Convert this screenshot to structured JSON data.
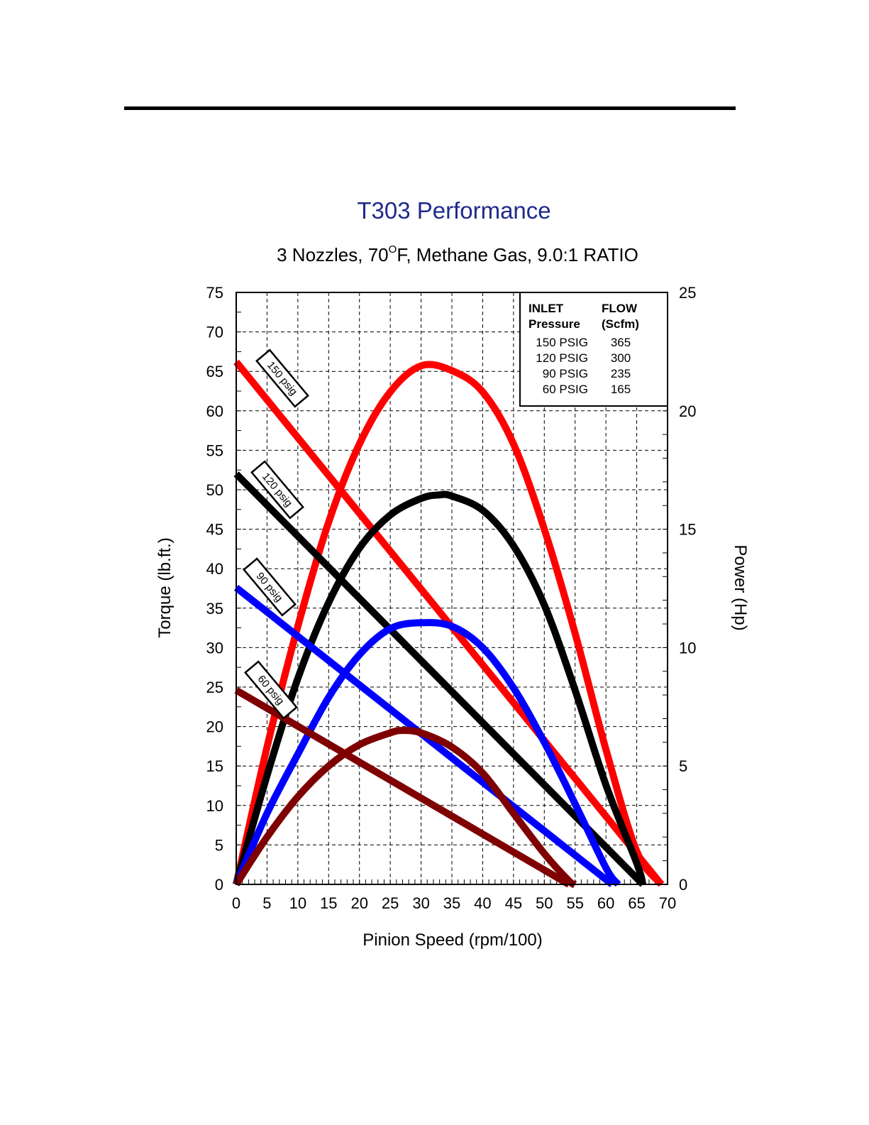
{
  "chart_data": {
    "type": "line",
    "title": "T303 Performance",
    "subtitle": {
      "prefix": "3 Nozzles,  70",
      "degree": "O",
      "suffix": "F, Methane Gas, 9.0:1 RATIO"
    },
    "xlabel": "Pinion Speed (rpm/100)",
    "ylabel": "Torque (lb.ft.)",
    "y2label": "Power (Hp)",
    "xlim": [
      0,
      70
    ],
    "ylim": [
      0,
      75
    ],
    "y2lim": [
      0,
      25
    ],
    "xticks": [
      "0",
      "5",
      "10",
      "15",
      "20",
      "25",
      "30",
      "35",
      "40",
      "45",
      "50",
      "55",
      "60",
      "65",
      "70"
    ],
    "yticks": [
      "0",
      "5",
      "10",
      "15",
      "20",
      "25",
      "30",
      "35",
      "40",
      "45",
      "50",
      "55",
      "60",
      "65",
      "70",
      "75"
    ],
    "y2ticks": [
      "0",
      "5",
      "10",
      "15",
      "20",
      "25"
    ],
    "grid": true,
    "legend": {
      "position": "top-right",
      "col1_header": [
        "INLET",
        "Pressure"
      ],
      "col2_header": [
        "FLOW",
        "(Scfm)"
      ],
      "rows": [
        {
          "pressure": "150 PSIG",
          "flow": "365"
        },
        {
          "pressure": "120 PSIG",
          "flow": "300"
        },
        {
          "pressure": "90 PSIG",
          "flow": "235"
        },
        {
          "pressure": "60 PSIG",
          "flow": "165"
        }
      ]
    },
    "series": [
      {
        "name": "150 psig",
        "color": "#ff0000",
        "torque": {
          "x": [
            0,
            69
          ],
          "y": [
            66.2,
            0
          ]
        },
        "power": {
          "x": [
            0,
            5,
            10,
            15,
            20,
            25,
            30,
            35,
            40,
            45,
            50,
            55,
            60,
            65,
            69
          ],
          "y": [
            0,
            5.8,
            10.9,
            15.3,
            18.6,
            20.8,
            21.9,
            21.7,
            20.8,
            18.6,
            15.0,
            10.6,
            5.7,
            1.4,
            0
          ]
        }
      },
      {
        "name": "120 psig",
        "color": "#000000",
        "torque": {
          "x": [
            0,
            66
          ],
          "y": [
            52.0,
            0
          ]
        },
        "power": {
          "x": [
            0,
            5,
            10,
            15,
            20,
            25,
            30,
            33,
            35,
            40,
            45,
            50,
            55,
            60,
            65,
            66
          ],
          "y": [
            0,
            4.6,
            8.7,
            11.9,
            14.2,
            15.6,
            16.3,
            16.45,
            16.4,
            15.8,
            14.3,
            11.8,
            8.2,
            4.2,
            0.9,
            0
          ]
        }
      },
      {
        "name": "90 psig",
        "color": "#0000ff",
        "torque": {
          "x": [
            0,
            61
          ],
          "y": [
            37.6,
            0
          ]
        },
        "power": {
          "x": [
            0,
            5,
            10,
            15,
            20,
            25,
            30,
            35,
            40,
            45,
            50,
            55,
            60,
            62
          ],
          "y": [
            0,
            3.0,
            5.5,
            7.9,
            9.7,
            10.8,
            11.05,
            10.9,
            10.0,
            8.3,
            6.0,
            3.4,
            0.7,
            0
          ]
        }
      },
      {
        "name": "60 psig",
        "color": "#7f0000",
        "torque": {
          "x": [
            0,
            54
          ],
          "y": [
            24.6,
            0
          ]
        },
        "power": {
          "x": [
            0,
            5,
            10,
            15,
            20,
            25,
            27,
            30,
            35,
            40,
            45,
            50,
            54,
            55
          ],
          "y": [
            0,
            2.0,
            3.7,
            5.0,
            5.9,
            6.4,
            6.5,
            6.4,
            5.8,
            4.7,
            3.0,
            1.3,
            0.15,
            0
          ]
        }
      }
    ],
    "curve_tags": [
      "150 psig",
      "120 psig",
      "90 psig",
      "60 psig"
    ]
  }
}
